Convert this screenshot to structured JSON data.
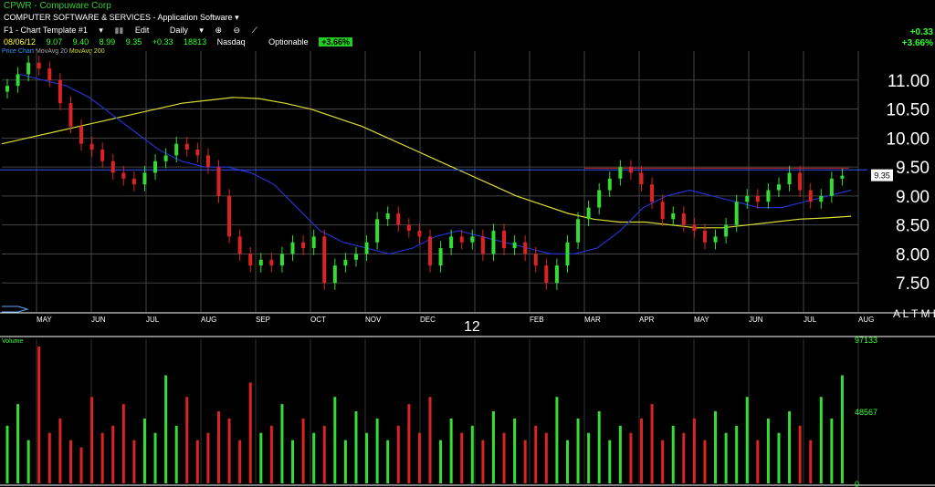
{
  "header": {
    "symbol_line": "CPWR - Compuware Corp",
    "industry_line": "COMPUTER SOFTWARE & SERVICES - Application Software",
    "template": "F1 - Chart Template #1",
    "edit": "Edit",
    "period": "Daily",
    "optionable": "Optionable",
    "exchange": "Nasdaq"
  },
  "quote": {
    "date": "08/06/12",
    "open": "9.07",
    "high": "9.40",
    "low": "8.99",
    "close": "9.35",
    "change": "+0.33",
    "volume": "18813",
    "pct_badge": "+3.66%"
  },
  "right_summary": {
    "change": "+0.33",
    "pct": "+3.66%"
  },
  "legend": {
    "price": "Price Chart",
    "ma20": "MovAvg 20",
    "ma200": "MovAvg 200"
  },
  "volume_label": "Volume",
  "price_box": "9.35",
  "year_label": "12",
  "bottom_right_text": "A L T M L",
  "colors": {
    "up": "#33dd33",
    "down": "#dd2222",
    "ma20": "#2233cc",
    "ma200": "#dddd33",
    "ma50": "#bbbbbb",
    "hline": "#3355ff",
    "resist": "#cc2222"
  },
  "chart_data": {
    "type": "candlestick",
    "price_axis": {
      "ticks": [
        "11.00",
        "10.50",
        "10.00",
        "9.50",
        "9.00",
        "8.50",
        "8.00",
        "7.50"
      ],
      "ylim": [
        7.0,
        11.5
      ]
    },
    "volume_axis": {
      "ticks": [
        "97133",
        "48567",
        "0"
      ],
      "ylim": [
        0,
        97133
      ]
    },
    "months": [
      "MAY",
      "JUN",
      "JUL",
      "AUG",
      "SEP",
      "OCT",
      "NOV",
      "DEC",
      "12",
      "FEB",
      "MAR",
      "APR",
      "MAY",
      "JUN",
      "JUL",
      "AUG"
    ],
    "last_close": 9.35,
    "support_line": 9.45,
    "resistance_line": 9.48,
    "closes": [
      10.9,
      11.1,
      11.3,
      11.2,
      11.0,
      10.6,
      10.2,
      9.9,
      9.8,
      9.6,
      9.4,
      9.3,
      9.2,
      9.4,
      9.6,
      9.7,
      9.9,
      9.8,
      9.7,
      9.5,
      9.0,
      8.3,
      8.0,
      7.8,
      7.9,
      7.8,
      8.0,
      8.2,
      8.1,
      8.3,
      7.5,
      7.8,
      7.9,
      8.0,
      8.2,
      8.6,
      8.7,
      8.5,
      8.4,
      8.3,
      7.8,
      8.1,
      8.3,
      8.2,
      8.3,
      8.0,
      8.4,
      8.1,
      8.2,
      8.0,
      7.8,
      7.5,
      7.8,
      8.2,
      8.6,
      8.8,
      9.1,
      9.3,
      9.5,
      9.4,
      9.2,
      8.9,
      8.6,
      8.7,
      8.5,
      8.4,
      8.2,
      8.3,
      8.5,
      8.9,
      9.0,
      8.9,
      9.1,
      9.2,
      9.4,
      9.1,
      8.9,
      9.0,
      9.3,
      9.35
    ],
    "ma200": [
      9.9,
      10.0,
      10.1,
      10.2,
      10.3,
      10.4,
      10.5,
      10.6,
      10.65,
      10.7,
      10.68,
      10.6,
      10.5,
      10.35,
      10.2,
      10.0,
      9.8,
      9.6,
      9.4,
      9.2,
      9.0,
      8.85,
      8.7,
      8.6,
      8.55,
      8.55,
      8.5,
      8.45,
      8.45,
      8.5,
      8.55,
      8.6,
      8.62,
      8.65
    ],
    "ma20": [
      11.1,
      11.0,
      10.9,
      10.7,
      10.4,
      10.1,
      9.8,
      9.6,
      9.5,
      9.5,
      9.4,
      9.2,
      8.8,
      8.4,
      8.2,
      8.1,
      8.0,
      8.1,
      8.3,
      8.4,
      8.3,
      8.2,
      8.1,
      8.0,
      8.0,
      8.1,
      8.4,
      8.8,
      9.0,
      9.1,
      9.0,
      8.9,
      8.8,
      8.8,
      8.9,
      9.0,
      9.1
    ],
    "volume": [
      40,
      55,
      30,
      95,
      35,
      45,
      30,
      25,
      60,
      35,
      40,
      55,
      30,
      45,
      35,
      75,
      40,
      60,
      30,
      35,
      50,
      45,
      30,
      70,
      35,
      40,
      55,
      30,
      45,
      35,
      40,
      60,
      30,
      50,
      35,
      45,
      30,
      40,
      55,
      35,
      60,
      30,
      45,
      35,
      40,
      30,
      50,
      35,
      45,
      30,
      40,
      35,
      60,
      30,
      45,
      35,
      50,
      30,
      40,
      35,
      45,
      55,
      30,
      40,
      35,
      45,
      30,
      50,
      35,
      40,
      60,
      30,
      45,
      35,
      50,
      40,
      30,
      60,
      45,
      75
    ]
  }
}
